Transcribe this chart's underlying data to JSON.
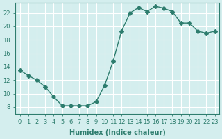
{
  "x": [
    0,
    1,
    2,
    3,
    4,
    5,
    6,
    7,
    8,
    9,
    10,
    11,
    12,
    13,
    14,
    15,
    16,
    17,
    18,
    19,
    20,
    21,
    22,
    23
  ],
  "y": [
    13.5,
    12.7,
    12.0,
    11.0,
    9.5,
    8.2,
    8.2,
    8.2,
    8.2,
    8.8,
    11.2,
    14.8,
    19.3,
    22.0,
    22.8,
    22.2,
    23.0,
    22.7,
    22.2,
    20.5,
    20.5,
    19.3,
    19.0,
    19.3
  ],
  "line_color": "#2e7d6e",
  "marker": "D",
  "markersize": 3,
  "bg_color": "#d4eeee",
  "grid_color": "#ffffff",
  "xlabel": "Humidex (Indice chaleur)",
  "xlim": [
    -0.5,
    23.5
  ],
  "ylim": [
    7,
    23.5
  ],
  "yticks": [
    8,
    10,
    12,
    14,
    16,
    18,
    20,
    22
  ],
  "xticks": [
    0,
    1,
    2,
    3,
    4,
    5,
    6,
    7,
    8,
    9,
    10,
    11,
    12,
    13,
    14,
    15,
    16,
    17,
    18,
    19,
    20,
    21,
    22,
    23
  ],
  "tick_color": "#2e7d6e",
  "label_color": "#2e7d6e",
  "axis_color": "#2e7d6e",
  "fontsize_ticks": 6,
  "fontsize_xlabel": 7
}
